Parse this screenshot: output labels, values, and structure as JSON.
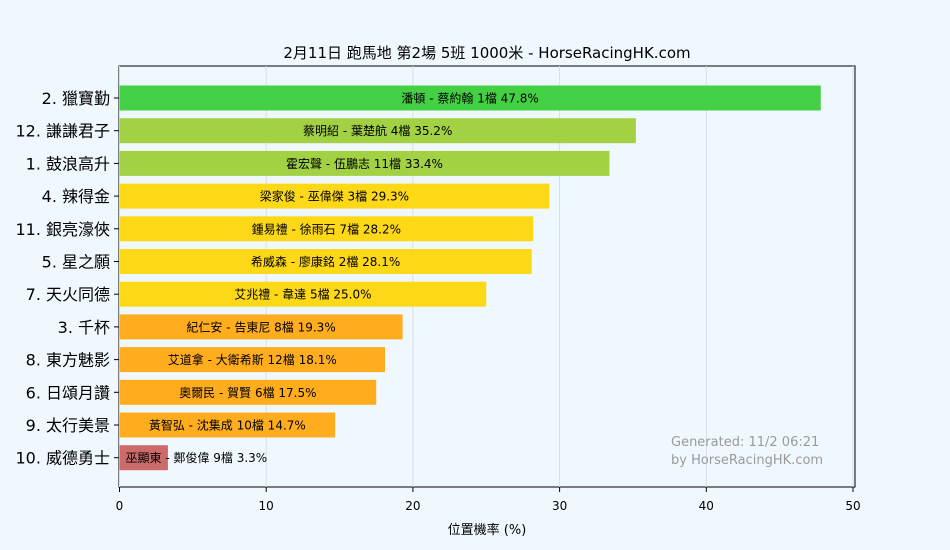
{
  "chart_data": {
    "type": "bar",
    "orientation": "horizontal",
    "title": "2月11日  跑馬地  第2場  5班  1000米 - HorseRacingHK.com",
    "xlabel": "位置機率 (%)",
    "ylabel": "",
    "xlim": [
      0,
      50
    ],
    "xticks": [
      0,
      10,
      20,
      30,
      40,
      50
    ],
    "grid": true,
    "categories": [
      "2. 獵寶勤",
      "12. 謙謙君子",
      "1. 鼓浪高升",
      "4. 辣得金",
      "11. 銀亮濠俠",
      "5. 星之願",
      "7. 天火同德",
      "3. 千杯",
      "8. 東方魅影",
      "6. 日頌月讚",
      "9. 太行美景",
      "10. 威德勇士"
    ],
    "values": [
      47.8,
      35.2,
      33.4,
      29.3,
      28.2,
      28.1,
      25.0,
      19.3,
      18.1,
      17.5,
      14.7,
      3.3
    ],
    "bar_labels": [
      "潘頓 - 蔡約翰 1檔  47.8%",
      "蔡明紹 - 葉楚航 4檔  35.2%",
      "霍宏聲 - 伍鵬志 11檔  33.4%",
      "梁家俊 - 巫偉傑 3檔  29.3%",
      "鍾易禮 - 徐雨石 7檔  28.2%",
      "希威森 - 廖康銘 2檔  28.1%",
      "艾兆禮 - 韋達 5檔  25.0%",
      "紀仁安 - 告東尼 8檔  19.3%",
      "艾道拿 - 大衛希斯 12檔  18.1%",
      "奧爾民 - 賀賢 6檔  17.5%",
      "黃智弘 - 沈集成 10檔  14.7%",
      "巫顯東 - 鄭俊偉 9檔  3.3%"
    ],
    "colors": [
      "#44d044",
      "#a2d244",
      "#a2d244",
      "#fcd817",
      "#fcd817",
      "#fcd817",
      "#fcd817",
      "#ffad1f",
      "#ffad1f",
      "#ffad1f",
      "#ffad1f",
      "#cd6a6a"
    ],
    "annotation": [
      "Generated: 11/2 06:21",
      "by HorseRacingHK.com"
    ]
  }
}
